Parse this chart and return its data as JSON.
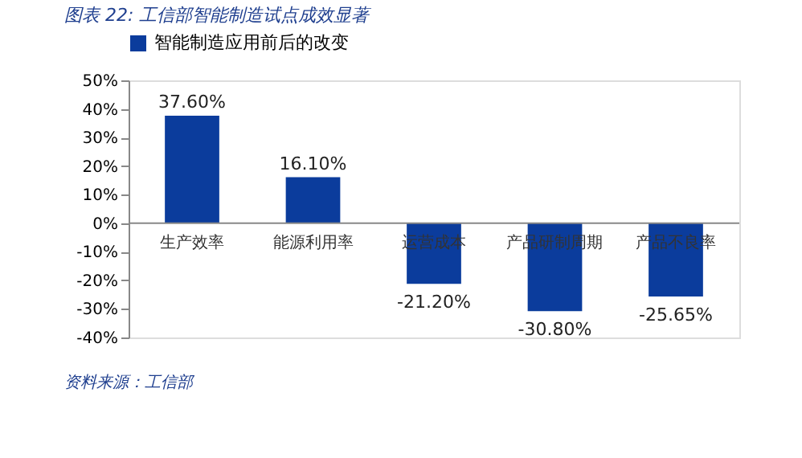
{
  "chart_data": {
    "type": "bar",
    "title": "图表 22: 工信部智能制造试点成效显著",
    "categories": [
      "生产效率",
      "能源利用率",
      "运营成本",
      "产品研制周期",
      "产品不良率"
    ],
    "series": [
      {
        "name": "智能制造应用前后的改变",
        "color": "#0b3c9c",
        "values": [
          37.6,
          16.1,
          -21.2,
          -30.8,
          -25.65
        ]
      }
    ],
    "value_labels": [
      "37.60%",
      "16.10%",
      "-21.20%",
      "-30.80%",
      "-25.65%"
    ],
    "ylim": [
      -40,
      50
    ],
    "yticks": [
      {
        "value": 50,
        "label": "50%"
      },
      {
        "value": 40,
        "label": "40%"
      },
      {
        "value": 30,
        "label": "30%"
      },
      {
        "value": 20,
        "label": "20%"
      },
      {
        "value": 10,
        "label": "10%"
      },
      {
        "value": 0,
        "label": "0%"
      },
      {
        "value": -10,
        "label": "-10%"
      },
      {
        "value": -20,
        "label": "-20%"
      },
      {
        "value": -30,
        "label": "-30%"
      },
      {
        "value": -40,
        "label": "-40%"
      }
    ],
    "legend": "top",
    "grid": false,
    "annotations": [
      "资料来源：工信部"
    ]
  }
}
